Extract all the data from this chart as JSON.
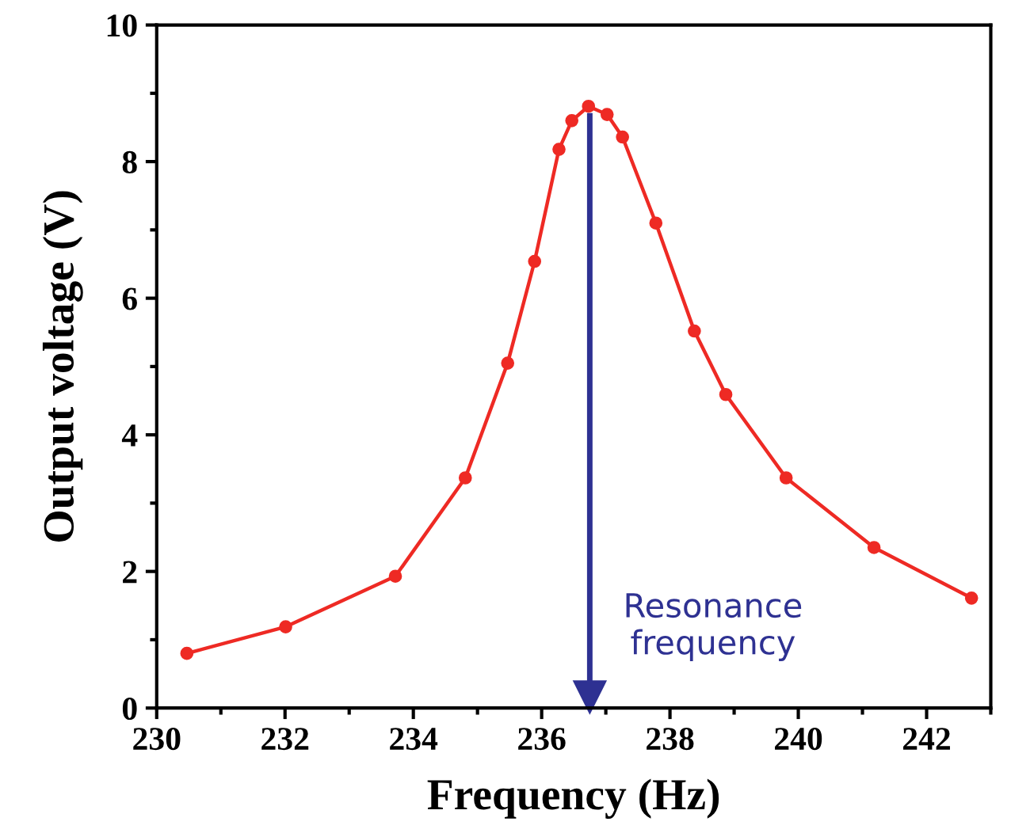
{
  "chart_data": {
    "type": "line",
    "xlabel": "Frequency (Hz)",
    "ylabel": "Output voltage (V)",
    "x": [
      230.47,
      232.01,
      233.72,
      234.81,
      235.47,
      235.89,
      236.27,
      236.47,
      236.73,
      237.02,
      237.26,
      237.78,
      238.38,
      238.87,
      239.81,
      241.18,
      242.7
    ],
    "series": [
      {
        "color": "#ee2a24",
        "values": [
          0.8,
          1.19,
          1.93,
          3.37,
          5.05,
          6.54,
          8.18,
          8.6,
          8.81,
          8.69,
          8.36,
          7.1,
          5.52,
          4.59,
          3.37,
          2.35,
          1.61
        ]
      }
    ],
    "xlim": [
      230,
      243
    ],
    "xticks": [
      230,
      232,
      234,
      236,
      238,
      240,
      242
    ],
    "ylim": [
      0,
      10
    ],
    "yticks": [
      0,
      2,
      4,
      6,
      8,
      10
    ],
    "marker": "circle",
    "line_style": "solid",
    "grid": false,
    "legend": false,
    "ref_lines": [
      {
        "axis": "x",
        "value": 236.75,
        "label": "Resonance\nfrequency",
        "color": "#2e3192"
      }
    ]
  }
}
